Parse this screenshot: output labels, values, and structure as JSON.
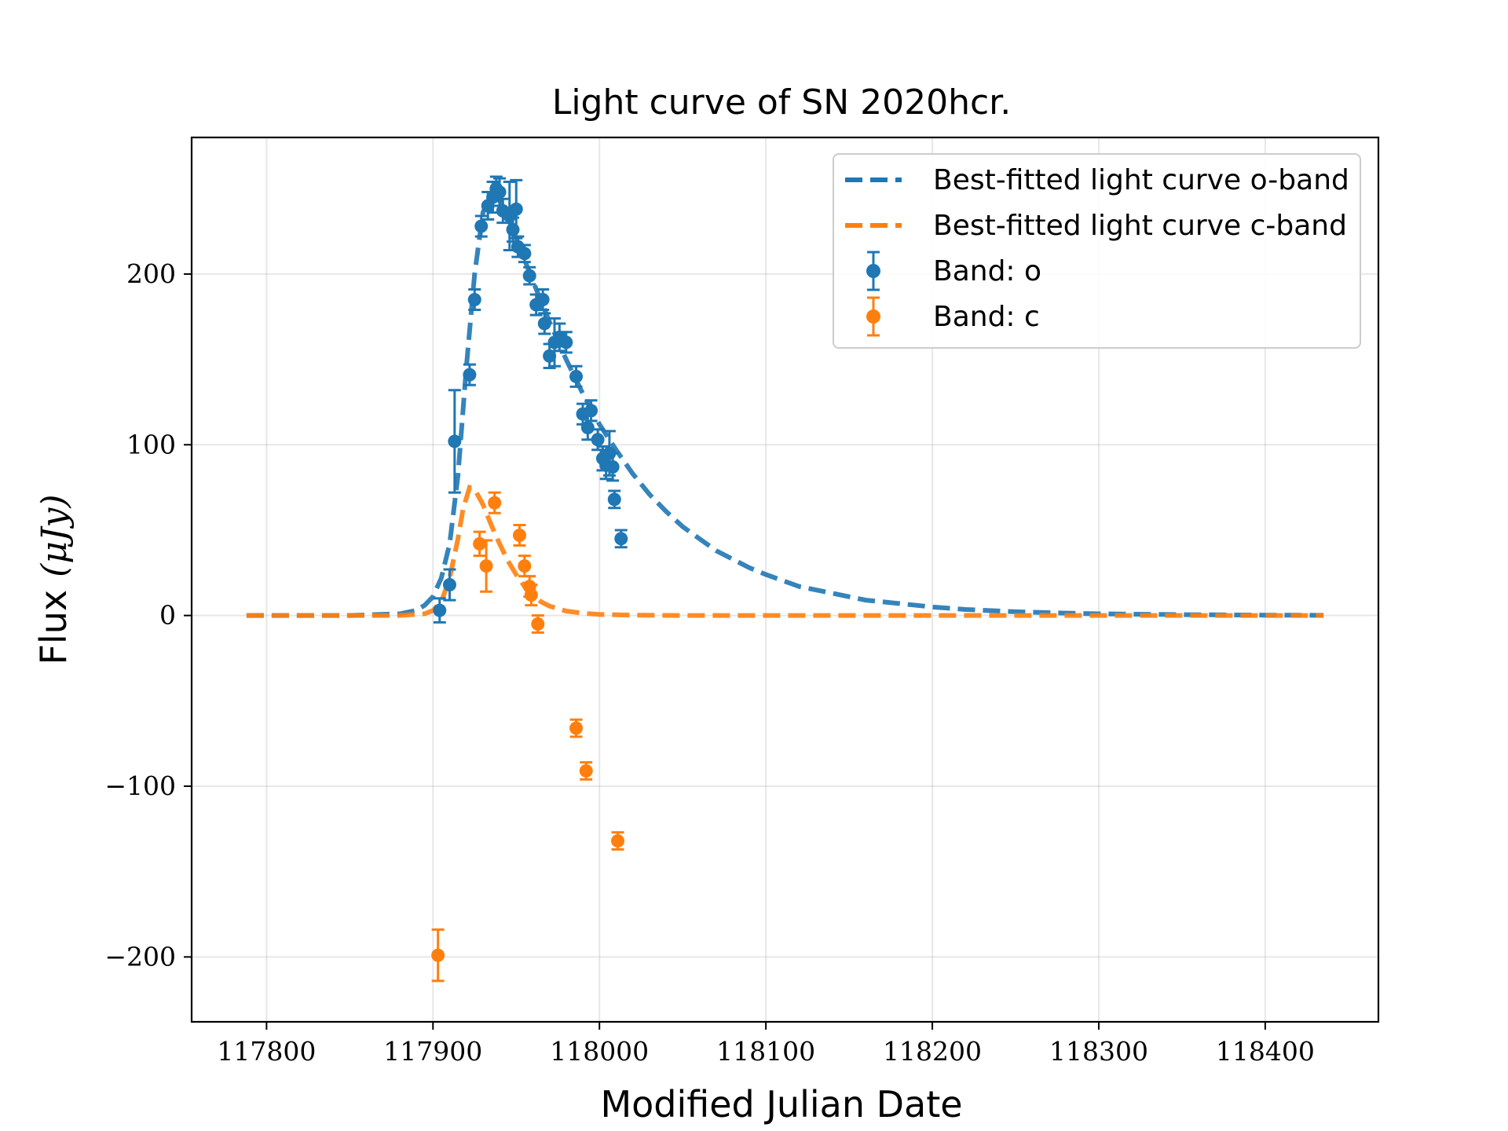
{
  "chart_data": {
    "type": "scatter",
    "title": "Light curve of SN 2020hcr.",
    "xlabel": "Modified Julian Date",
    "ylabel": "Flux",
    "ylabel_unit": "(μJy)",
    "xlim": [
      117755,
      118468
    ],
    "ylim": [
      -238,
      280
    ],
    "x_ticks": [
      117800,
      117900,
      118000,
      118100,
      118200,
      118300,
      118400
    ],
    "y_ticks": [
      200,
      100,
      0,
      -100,
      -200
    ],
    "y_tick_labels": [
      "200",
      "100",
      "0",
      "−100",
      "−200"
    ],
    "grid": true,
    "legend_position": "top-right",
    "colors": {
      "o": "#1f77b4",
      "c": "#ff7f0e"
    },
    "legend": [
      {
        "label": "Best-fitted light curve o-band",
        "kind": "line",
        "series": "o"
      },
      {
        "label": "Best-fitted light curve c-band",
        "kind": "line",
        "series": "c"
      },
      {
        "label": "Band: o",
        "kind": "errorbar",
        "series": "o"
      },
      {
        "label": "Band: c",
        "kind": "errorbar",
        "series": "c"
      }
    ],
    "model_curves": [
      {
        "name": "Best-fitted light curve o-band",
        "color": "#1f77b4",
        "x": [
          117788,
          117850,
          117880,
          117890,
          117895,
          117900,
          117905,
          117910,
          117915,
          117920,
          117925,
          117930,
          117935,
          117940,
          117945,
          117950,
          117960,
          117970,
          117980,
          117990,
          118000,
          118010,
          118020,
          118030,
          118040,
          118050,
          118060,
          118070,
          118080,
          118090,
          118100,
          118120,
          118140,
          118160,
          118180,
          118200,
          118220,
          118250,
          118280,
          118300,
          118350,
          118400,
          118435
        ],
        "y": [
          0,
          0,
          1,
          3,
          6,
          11,
          22,
          42,
          82,
          145,
          200,
          236,
          247,
          243,
          233,
          221,
          196,
          172,
          150,
          130,
          112,
          97,
          83,
          71,
          61,
          52,
          45,
          38,
          33,
          28,
          24,
          17,
          13,
          9,
          7,
          5,
          3.5,
          2.2,
          1.4,
          1,
          0.5,
          0.2,
          0.1
        ]
      },
      {
        "name": "Best-fitted light curve c-band",
        "color": "#ff7f0e",
        "x": [
          117788,
          117880,
          117895,
          117900,
          117905,
          117910,
          117915,
          117918,
          117922,
          117925,
          117930,
          117935,
          117940,
          117945,
          117950,
          117955,
          117960,
          117965,
          117970,
          117980,
          117990,
          118000,
          118020,
          118050,
          118100,
          118200,
          118300,
          118435
        ],
        "y": [
          0,
          0,
          1,
          3,
          8,
          22,
          45,
          62,
          75,
          74,
          65,
          53,
          42,
          32,
          24,
          17,
          12,
          8,
          5.5,
          2.6,
          1.3,
          0.6,
          0.2,
          0,
          0,
          0,
          0,
          0
        ]
      }
    ],
    "series": [
      {
        "name": "Band: o",
        "color": "#1f77b4",
        "points": [
          {
            "x": 117904,
            "y": 3,
            "err": 7
          },
          {
            "x": 117910,
            "y": 18,
            "err": 9
          },
          {
            "x": 117913,
            "y": 102,
            "err": 30
          },
          {
            "x": 117922,
            "y": 141,
            "err": 6
          },
          {
            "x": 117925,
            "y": 185,
            "err": 6
          },
          {
            "x": 117929,
            "y": 228,
            "err": 6
          },
          {
            "x": 117933,
            "y": 240,
            "err": 8
          },
          {
            "x": 117936,
            "y": 245,
            "err": 9
          },
          {
            "x": 117938,
            "y": 250,
            "err": 7
          },
          {
            "x": 117940,
            "y": 248,
            "err": 8
          },
          {
            "x": 117942,
            "y": 237,
            "err": 7
          },
          {
            "x": 117946,
            "y": 234,
            "err": 20
          },
          {
            "x": 117948,
            "y": 226,
            "err": 7
          },
          {
            "x": 117950,
            "y": 238,
            "err": 17
          },
          {
            "x": 117951,
            "y": 216,
            "err": 6
          },
          {
            "x": 117955,
            "y": 212,
            "err": 5
          },
          {
            "x": 117958,
            "y": 199,
            "err": 5
          },
          {
            "x": 117962,
            "y": 182,
            "err": 6
          },
          {
            "x": 117966,
            "y": 185,
            "err": 6
          },
          {
            "x": 117967,
            "y": 171,
            "err": 6
          },
          {
            "x": 117970,
            "y": 152,
            "err": 7
          },
          {
            "x": 117973,
            "y": 160,
            "err": 14
          },
          {
            "x": 117976,
            "y": 163,
            "err": 8
          },
          {
            "x": 117980,
            "y": 160,
            "err": 6
          },
          {
            "x": 117986,
            "y": 140,
            "err": 6
          },
          {
            "x": 117990,
            "y": 118,
            "err": 6
          },
          {
            "x": 117993,
            "y": 110,
            "err": 7
          },
          {
            "x": 117995,
            "y": 120,
            "err": 6
          },
          {
            "x": 117999,
            "y": 103,
            "err": 6
          },
          {
            "x": 118002,
            "y": 92,
            "err": 7
          },
          {
            "x": 118004,
            "y": 88,
            "err": 8
          },
          {
            "x": 118006,
            "y": 95,
            "err": 13
          },
          {
            "x": 118008,
            "y": 87,
            "err": 8
          },
          {
            "x": 118009,
            "y": 68,
            "err": 5
          },
          {
            "x": 118013,
            "y": 45,
            "err": 5
          }
        ]
      },
      {
        "name": "Band: c",
        "color": "#ff7f0e",
        "points": [
          {
            "x": 117903,
            "y": -199,
            "err": 15
          },
          {
            "x": 117928,
            "y": 42,
            "err": 7
          },
          {
            "x": 117932,
            "y": 29,
            "err": 15
          },
          {
            "x": 117937,
            "y": 66,
            "err": 6
          },
          {
            "x": 117952,
            "y": 47,
            "err": 6
          },
          {
            "x": 117955,
            "y": 29,
            "err": 6
          },
          {
            "x": 117958,
            "y": 17,
            "err": 6
          },
          {
            "x": 117959,
            "y": 12,
            "err": 6
          },
          {
            "x": 117963,
            "y": -5,
            "err": 5
          },
          {
            "x": 117986,
            "y": -66,
            "err": 5
          },
          {
            "x": 117992,
            "y": -91,
            "err": 5
          },
          {
            "x": 118011,
            "y": -132,
            "err": 5
          }
        ]
      }
    ]
  }
}
